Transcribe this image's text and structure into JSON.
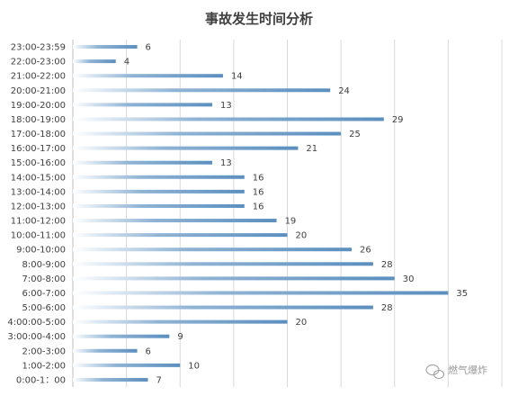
{
  "chart_data": {
    "type": "bar",
    "orientation": "horizontal",
    "title": "事故发生时间分析",
    "categories": [
      "23:00-23:59",
      "22:00-23:00",
      "21:00-22:00",
      "20:00-21:00",
      "19:00-20:00",
      "18:00-19:00",
      "17:00-18:00",
      "16:00-17:00",
      "15:00-16:00",
      "14:00-15:00",
      "13:00-14:00",
      "12:00-13:00",
      "11:00-12:00",
      "10:00-11:00",
      "9:00-10:00",
      "8:00-9:00",
      "7:00-8:00",
      "6:00-7:00",
      "5:00-6:00",
      "4:00:00-5:00",
      "3:00:00-4:00",
      "2:00-3:00",
      "1:00-2:00",
      "0:00-1：00"
    ],
    "values": [
      6,
      4,
      14,
      24,
      13,
      29,
      25,
      21,
      13,
      16,
      16,
      16,
      19,
      20,
      26,
      28,
      30,
      35,
      28,
      20,
      9,
      6,
      10,
      7
    ],
    "xlim": [
      0,
      40
    ],
    "grid": true,
    "bar_color": "#5b8fbf",
    "data_labels": true
  },
  "watermark": {
    "text": "燃气爆炸",
    "icon": "wechat-icon"
  }
}
